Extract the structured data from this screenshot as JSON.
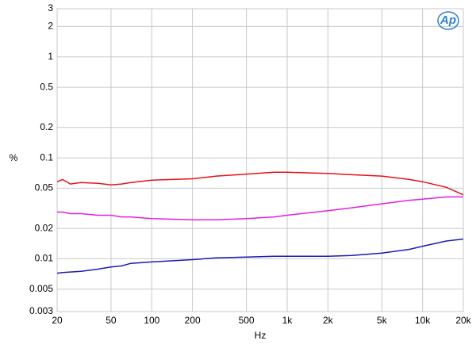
{
  "chart_data": {
    "type": "line",
    "logo": "Ap",
    "xlabel": "Hz",
    "ylabel": "%",
    "x": [
      20,
      22,
      25,
      30,
      40,
      50,
      60,
      70,
      100,
      200,
      300,
      500,
      800,
      1000,
      2000,
      3000,
      5000,
      8000,
      10000,
      15000,
      20000
    ],
    "series": [
      {
        "color": "#e8101a",
        "values": [
          0.058,
          0.061,
          0.055,
          0.057,
          0.056,
          0.054,
          0.055,
          0.057,
          0.06,
          0.062,
          0.066,
          0.069,
          0.072,
          0.072,
          0.07,
          0.068,
          0.066,
          0.061,
          0.058,
          0.051,
          0.043
        ]
      },
      {
        "color": "#e020e0",
        "values": [
          0.029,
          0.029,
          0.028,
          0.028,
          0.027,
          0.027,
          0.026,
          0.026,
          0.025,
          0.0243,
          0.0243,
          0.025,
          0.026,
          0.027,
          0.03,
          0.032,
          0.035,
          0.038,
          0.039,
          0.041,
          0.041
        ]
      },
      {
        "color": "#1a1ab4",
        "values": [
          0.0072,
          0.0073,
          0.0074,
          0.0075,
          0.0079,
          0.0083,
          0.0085,
          0.009,
          0.0093,
          0.0098,
          0.0102,
          0.0104,
          0.0106,
          0.0106,
          0.0106,
          0.0108,
          0.0114,
          0.0124,
          0.0133,
          0.015,
          0.0157
        ]
      }
    ],
    "xscale": "log",
    "yscale": "log",
    "grid": true,
    "xlim": [
      20,
      20000
    ],
    "ylim": [
      0.003,
      3
    ],
    "xticks": [
      20,
      50,
      100,
      200,
      500,
      {
        "value": 1000,
        "label": "1k"
      },
      {
        "value": 2000,
        "label": "2k"
      },
      {
        "value": 5000,
        "label": "5k"
      },
      {
        "value": 10000,
        "label": "10k"
      },
      {
        "value": 20000,
        "label": "20k"
      }
    ],
    "yticks": [
      0.003,
      0.005,
      0.01,
      0.02,
      0.05,
      0.1,
      0.2,
      0.5,
      1,
      2,
      3
    ]
  }
}
